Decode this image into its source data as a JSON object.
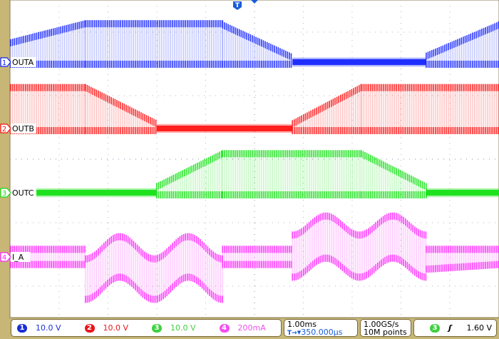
{
  "chart_data": {
    "type": "line",
    "title": "",
    "xlabel": "",
    "ylabel": "",
    "time_per_div": "1.00ms",
    "grid": true,
    "colors": {
      "OUTA": "#1020ff",
      "OUTB": "#ff1010",
      "OUTC": "#10e010",
      "I_A": "#ff20ff"
    },
    "series": [
      {
        "channel": "1",
        "name": "OUTA",
        "scale": "10.0 V",
        "color": "#1020ff",
        "segments": [
          {
            "t_ms": [
              0,
              1.53
            ],
            "low": [
              -0.9,
              -0.9
            ],
            "high": [
              3.6,
              6.6
            ]
          },
          {
            "t_ms": [
              1.53,
              4.34
            ],
            "low": [
              -0.9,
              -0.9
            ],
            "high": [
              6.6,
              6.6
            ]
          },
          {
            "t_ms": [
              4.34,
              5.77
            ],
            "low": [
              -0.9,
              -0.9
            ],
            "high": [
              6.4,
              1.3
            ]
          },
          {
            "t_ms": [
              5.77,
              8.51
            ],
            "low": [
              -0.7,
              -0.7
            ],
            "high": [
              0.7,
              0.7
            ]
          },
          {
            "t_ms": [
              8.51,
              10
            ],
            "low": [
              -0.9,
              -0.9
            ],
            "high": [
              1.5,
              6.4
            ]
          }
        ]
      },
      {
        "channel": "2",
        "name": "OUTB",
        "scale": "10.0 V",
        "color": "#ff1010",
        "segments": [
          {
            "t_ms": [
              0,
              1.53
            ],
            "low": [
              -0.9,
              -0.9
            ],
            "high": [
              7.0,
              7.0
            ]
          },
          {
            "t_ms": [
              1.53,
              2.99
            ],
            "low": [
              -0.9,
              -0.9
            ],
            "high": [
              7.0,
              1.3
            ]
          },
          {
            "t_ms": [
              2.99,
              5.77
            ],
            "low": [
              -0.7,
              -0.7
            ],
            "high": [
              0.7,
              0.7
            ]
          },
          {
            "t_ms": [
              5.77,
              7.18
            ],
            "low": [
              -0.9,
              -0.9
            ],
            "high": [
              1.3,
              7.0
            ]
          },
          {
            "t_ms": [
              7.18,
              10
            ],
            "low": [
              -0.9,
              -0.9
            ],
            "high": [
              7.0,
              7.0
            ]
          }
        ]
      },
      {
        "channel": "3",
        "name": "OUTC",
        "scale": "10.0 V",
        "color": "#10e010",
        "segments": [
          {
            "t_ms": [
              0,
              2.99
            ],
            "low": [
              -0.7,
              -0.7
            ],
            "high": [
              0.7,
              0.7
            ]
          },
          {
            "t_ms": [
              2.99,
              4.34
            ],
            "low": [
              -0.9,
              -0.9
            ],
            "high": [
              1.5,
              6.7
            ]
          },
          {
            "t_ms": [
              4.34,
              7.18
            ],
            "low": [
              -0.9,
              -0.9
            ],
            "high": [
              6.7,
              6.7
            ]
          },
          {
            "t_ms": [
              7.18,
              8.51
            ],
            "low": [
              -0.9,
              -0.9
            ],
            "high": [
              6.7,
              1.5
            ]
          },
          {
            "t_ms": [
              8.51,
              10
            ],
            "low": [
              -0.7,
              -0.7
            ],
            "high": [
              0.7,
              0.7
            ]
          }
        ]
      },
      {
        "channel": "4",
        "name": "I_A",
        "scale": "200mA",
        "color": "#ff20ff",
        "segments": [
          {
            "t_ms": [
              0,
              1.53
            ],
            "low": [
              -35,
              -35
            ],
            "high": [
              35,
              35
            ]
          },
          {
            "t_ms": [
              1.53,
              4.34
            ],
            "low": [
              -110,
              -110
            ],
            "high": [
              40,
              40
            ],
            "wobble": 35
          },
          {
            "t_ms": [
              4.34,
              5.77
            ],
            "low": [
              -35,
              -35
            ],
            "high": [
              35,
              35
            ]
          },
          {
            "t_ms": [
              5.77,
              8.51
            ],
            "low": [
              -45,
              -45
            ],
            "high": [
              110,
              110
            ],
            "wobble": 30
          },
          {
            "t_ms": [
              8.51,
              10
            ],
            "low": [
              -50,
              -35
            ],
            "high": [
              35,
              35
            ]
          }
        ]
      }
    ]
  },
  "channels": [
    {
      "num": "1",
      "scale": "10.0 V",
      "color": "#1a2dd8"
    },
    {
      "num": "2",
      "scale": "10.0 V",
      "color": "#e8141c"
    },
    {
      "num": "3",
      "scale": "10.0 V",
      "color": "#40d040"
    },
    {
      "num": "4",
      "scale": "200mA",
      "color": "#f050f0"
    }
  ],
  "timebase": {
    "scale": "1.00ms",
    "delay": "▾350.000µs",
    "delay_icon": "T→"
  },
  "acquisition": {
    "rate": "1.00GS/s",
    "length": "10M points"
  },
  "trigger": {
    "source": "3",
    "slope_icon": "rising-edge",
    "slope_glyph": "ʃ",
    "level": "1.60 V"
  },
  "trigger_marker": "T"
}
